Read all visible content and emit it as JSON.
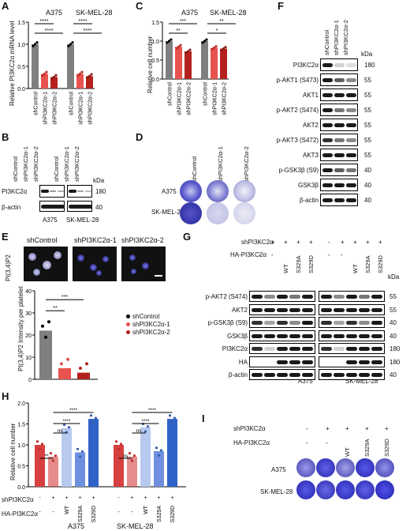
{
  "panels": {
    "A": "A",
    "B": "B",
    "C": "C",
    "D": "D",
    "E": "E",
    "F": "F",
    "G": "G",
    "H": "H",
    "I": "I"
  },
  "colors": {
    "control": "#7f7f7f",
    "sh1": "#e8534f",
    "sh2": "#b4211d",
    "wt": "#b8c9ef",
    "s329a": "#6f90de",
    "s329d": "#2f62c9",
    "ctrlH": "#d64040"
  },
  "common": {
    "cell_A375": "A375",
    "cell_SKMEL28": "SK-MEL-28",
    "shControl": "shControl",
    "sh1": "shPI3KC2α-1",
    "sh2": "shPI3KC2α-2",
    "kda": "kDa",
    "shPI3KC2a": "shPI3KC2α",
    "HA_PI3KC2a": "HA-PI3KC2α",
    "WT": "WT",
    "S329A": "S329A",
    "S329D": "S329D",
    "plus": "+",
    "minus": "-"
  },
  "panelA": {
    "ylabel": "Relative PI3KC2α mRNA level",
    "ticks": [
      "0.0",
      "0.5",
      "1.0",
      "1.5"
    ],
    "sig": [
      "****",
      "****",
      "****",
      "****"
    ]
  },
  "panelB": {
    "row1": "PI3KC2α",
    "row2": "β-actin",
    "mw1": "180",
    "mw2": "40"
  },
  "panelC": {
    "ylabel": "Relative cell number",
    "ticks": [
      "0.0",
      "0.5",
      "1.0",
      "1.5"
    ],
    "sig": [
      "***",
      "**",
      "**",
      "*"
    ]
  },
  "panelE": {
    "ylabel": "PI(3,4)P2 Intensity per platelet",
    "row_label": "PI(3,4)P2",
    "ticks": [
      "0",
      "10",
      "20",
      "30",
      "40"
    ],
    "sig": [
      "***",
      "**"
    ]
  },
  "panelF": {
    "rows": [
      "PI3KC2α",
      "p-AKT1 (S473)",
      "AKT1",
      "p-AKT2 (S474)",
      "AKT2",
      "p-AKT3 (S472)",
      "AKT3",
      "p-GSK3β (S9)",
      "GSK3β",
      "β-actin"
    ],
    "mw": [
      "180",
      "55",
      "55",
      "55",
      "55",
      "55",
      "55",
      "40",
      "40",
      "40"
    ]
  },
  "panelG": {
    "rows": [
      "p-AKT2 (S474)",
      "AKT2",
      "p-GSK3β (S9)",
      "GSK3β",
      "PI3KC2α",
      "HA",
      "β-actin"
    ],
    "mw": [
      "55",
      "55",
      "40",
      "40",
      "180",
      "180",
      "40"
    ]
  },
  "panelH": {
    "ylabel": "Relative cell number",
    "ticks": [
      "0.0",
      "0.5",
      "1.0",
      "1.5",
      "2.0"
    ],
    "sig_left": [
      "**",
      "ns",
      "****",
      "****"
    ],
    "sig_right": [
      "ns",
      "ns",
      "****",
      "****"
    ]
  },
  "chart_data": [
    {
      "type": "bar",
      "title": "",
      "ylabel": "Relative PI3KC2α mRNA level",
      "ylim": [
        0,
        1.5
      ],
      "categories": [
        "shControl",
        "shPI3KC2α-1",
        "shPI3KC2α-2"
      ],
      "series": [
        {
          "name": "A375",
          "values": [
            1.0,
            0.33,
            0.26
          ]
        },
        {
          "name": "SK-MEL-28",
          "values": [
            1.0,
            0.33,
            0.28
          ]
        }
      ]
    },
    {
      "type": "bar",
      "title": "",
      "ylabel": "Relative cell number",
      "ylim": [
        0,
        1.5
      ],
      "categories": [
        "shControl",
        "shPI3KC2α-1",
        "shPI3KC2α-2"
      ],
      "series": [
        {
          "name": "A375",
          "values": [
            1.0,
            0.85,
            0.73
          ]
        },
        {
          "name": "SK-MEL-28",
          "values": [
            1.0,
            0.82,
            0.8
          ]
        }
      ]
    },
    {
      "type": "bar",
      "title": "",
      "ylabel": "PI(3,4)P2 Intensity per platelet",
      "ylim": [
        0,
        40
      ],
      "categories": [
        "shControl",
        "shPI3KC2α-1",
        "shPI3KC2α-2"
      ],
      "values": [
        22,
        5,
        3
      ]
    },
    {
      "type": "bar",
      "title": "",
      "ylabel": "Relative cell number",
      "ylim": [
        0,
        2.0
      ],
      "categories": [
        "- / -",
        "+ / -",
        "+ / WT",
        "+ / S329A",
        "+ / S329D"
      ],
      "series": [
        {
          "name": "A375",
          "values": [
            1.0,
            0.72,
            1.4,
            0.82,
            1.62
          ]
        },
        {
          "name": "SK-MEL-28",
          "values": [
            1.0,
            0.72,
            1.42,
            0.85,
            1.62
          ]
        }
      ]
    }
  ]
}
